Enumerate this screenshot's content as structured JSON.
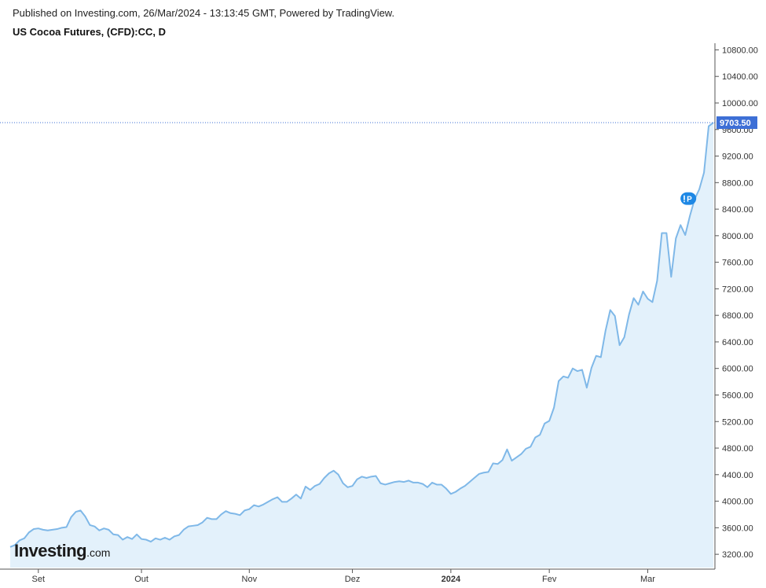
{
  "header": {
    "published": "Published on Investing.com, 26/Mar/2024 - 13:13:45 GMT, Powered by TradingView.",
    "title": "US Cocoa Futures, (CFD):CC, D"
  },
  "logo": {
    "main": "Investing",
    "suffix": ".com"
  },
  "colors": {
    "line": "#7fb8e8",
    "area": "#e3f1fb",
    "price_label_bg": "#3d6fd6",
    "price_line": "#3d6fd6",
    "marker_bg": "#1e88e5"
  },
  "chart_data": {
    "type": "area",
    "title": "US Cocoa Futures, (CFD):CC, D",
    "ylim": [
      3000,
      10900
    ],
    "y_ticks": [
      3200,
      3600,
      4000,
      4400,
      4800,
      5200,
      5600,
      6000,
      6400,
      6800,
      7200,
      7600,
      8000,
      8400,
      8800,
      9200,
      9600,
      10000,
      10400,
      10800
    ],
    "y_tick_labels": [
      "3200.00",
      "3600.00",
      "4000.00",
      "4400.00",
      "4800.00",
      "5200.00",
      "5600.00",
      "6000.00",
      "6400.00",
      "6800.00",
      "7200.00",
      "7600.00",
      "8000.00",
      "8400.00",
      "8800.00",
      "9200.00",
      "9600.00",
      "10000.00",
      "10400.00",
      "10800.00"
    ],
    "x_labels": [
      {
        "label": "Set",
        "index": 6,
        "bold": false
      },
      {
        "label": "Out",
        "index": 28,
        "bold": false
      },
      {
        "label": "Nov",
        "index": 51,
        "bold": false
      },
      {
        "label": "Dez",
        "index": 73,
        "bold": false
      },
      {
        "label": "2024",
        "index": 94,
        "bold": true
      },
      {
        "label": "Fev",
        "index": 115,
        "bold": false
      },
      {
        "label": "Mar",
        "index": 136,
        "bold": false
      }
    ],
    "series": [
      {
        "values": [
          3310,
          3340,
          3410,
          3440,
          3530,
          3580,
          3590,
          3570,
          3560,
          3570,
          3580,
          3600,
          3610,
          3760,
          3840,
          3860,
          3770,
          3640,
          3620,
          3560,
          3590,
          3570,
          3500,
          3490,
          3420,
          3460,
          3430,
          3500,
          3430,
          3420,
          3390,
          3440,
          3420,
          3450,
          3420,
          3470,
          3490,
          3570,
          3620,
          3630,
          3640,
          3680,
          3750,
          3730,
          3730,
          3800,
          3850,
          3820,
          3810,
          3790,
          3860,
          3880,
          3940,
          3920,
          3950,
          3990,
          4030,
          4060,
          3990,
          3990,
          4040,
          4100,
          4040,
          4220,
          4170,
          4230,
          4260,
          4350,
          4420,
          4460,
          4400,
          4270,
          4210,
          4230,
          4330,
          4370,
          4350,
          4370,
          4380,
          4270,
          4250,
          4270,
          4290,
          4300,
          4290,
          4310,
          4280,
          4280,
          4260,
          4210,
          4280,
          4250,
          4250,
          4190,
          4110,
          4140,
          4190,
          4230,
          4290,
          4350,
          4410,
          4430,
          4440,
          4570,
          4560,
          4620,
          4780,
          4610,
          4660,
          4710,
          4790,
          4820,
          4960,
          5000,
          5170,
          5210,
          5410,
          5810,
          5880,
          5860,
          6000,
          5960,
          5980,
          5710,
          6010,
          6190,
          6170,
          6570,
          6880,
          6790,
          6350,
          6470,
          6810,
          7060,
          6960,
          7160,
          7050,
          7000,
          7320,
          8040,
          8040,
          7380,
          7960,
          8160,
          8010,
          8300,
          8550,
          8700,
          8950,
          9650,
          9703.5
        ],
        "last_value": 9703.5,
        "last_label": "9703.50"
      }
    ],
    "marker": {
      "label": "P",
      "index": 145,
      "value": 8560
    }
  }
}
